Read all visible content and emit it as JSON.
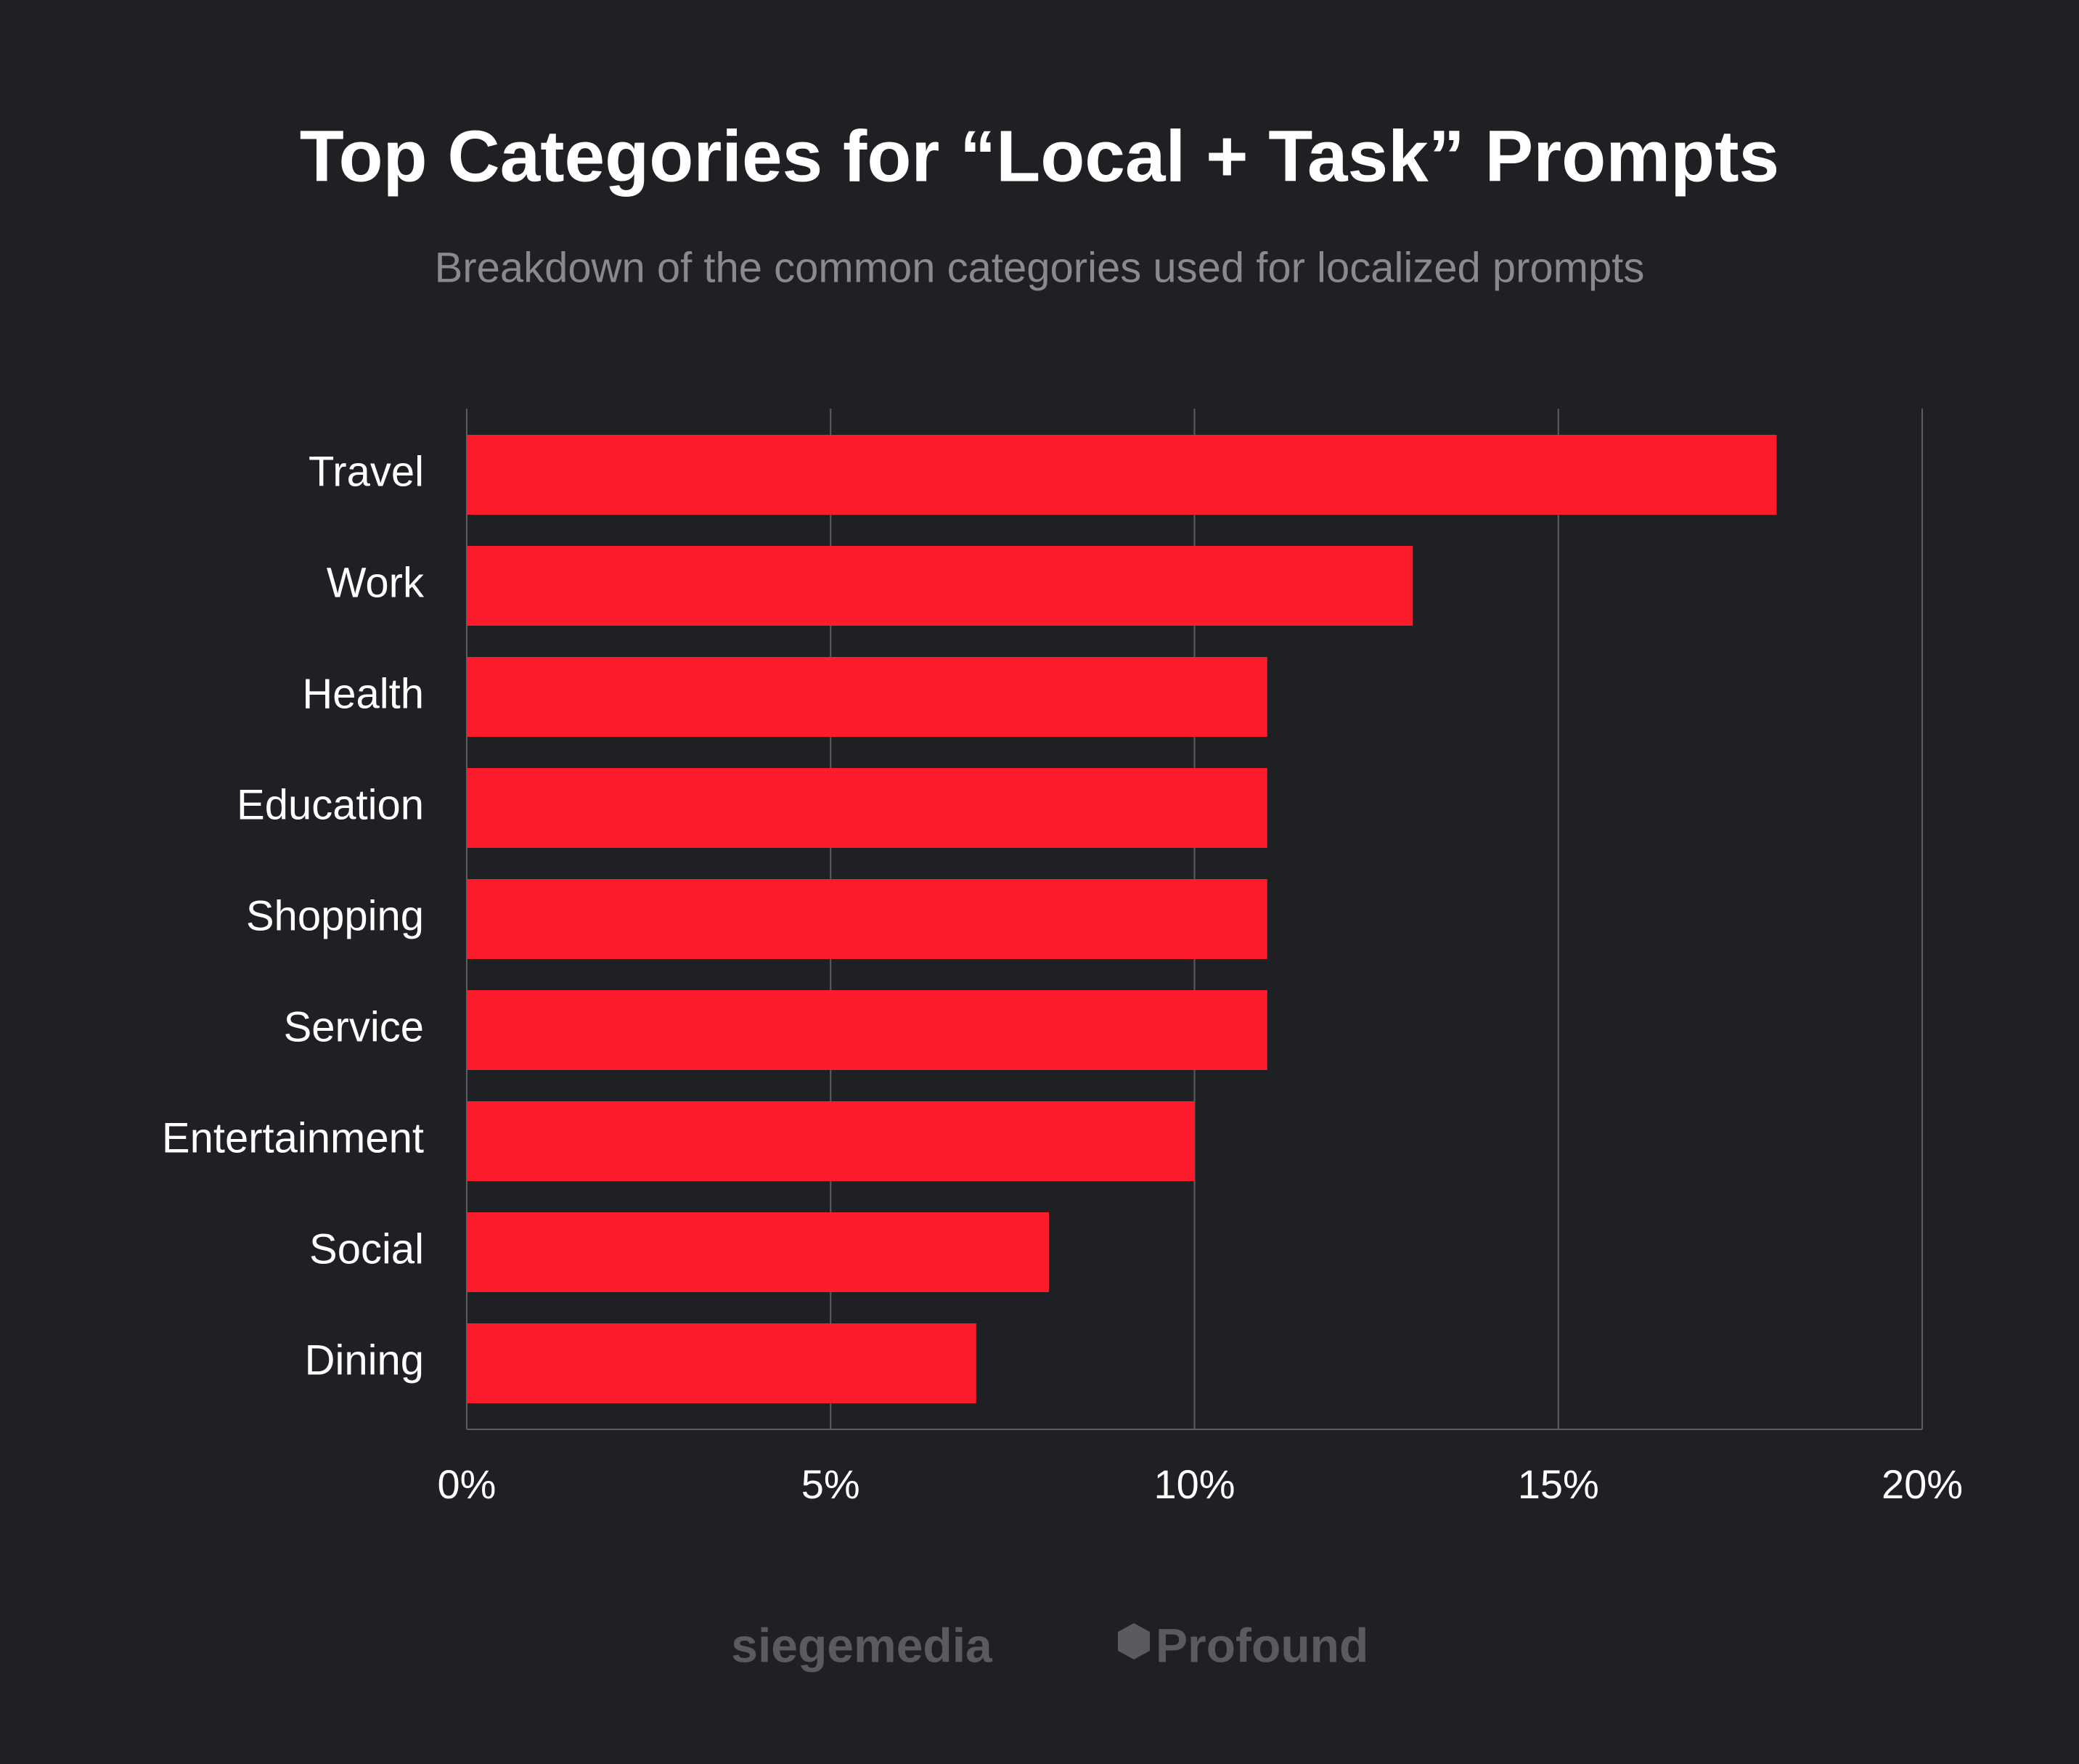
{
  "chart_data": {
    "type": "bar",
    "orientation": "horizontal",
    "title": "Top Categories for “Local + Task” Prompts",
    "subtitle": "Breakdown of the common categories used for localized prompts",
    "categories": [
      "Travel",
      "Work",
      "Health",
      "Education",
      "Shopping",
      "Service",
      "Entertainment",
      "Social",
      "Dining"
    ],
    "values": [
      18,
      13,
      11,
      11,
      11,
      11,
      10,
      8,
      7
    ],
    "color": "#fc1c2c",
    "xlim": [
      0,
      20
    ],
    "xticks": [
      {
        "value": 0,
        "label": "0%"
      },
      {
        "value": 5,
        "label": "5%"
      },
      {
        "value": 10,
        "label": "10%"
      },
      {
        "value": 15,
        "label": "15%"
      },
      {
        "value": 20,
        "label": "20%"
      }
    ],
    "grid": true
  },
  "footer_logos": [
    "siegemedia",
    "Profound"
  ]
}
